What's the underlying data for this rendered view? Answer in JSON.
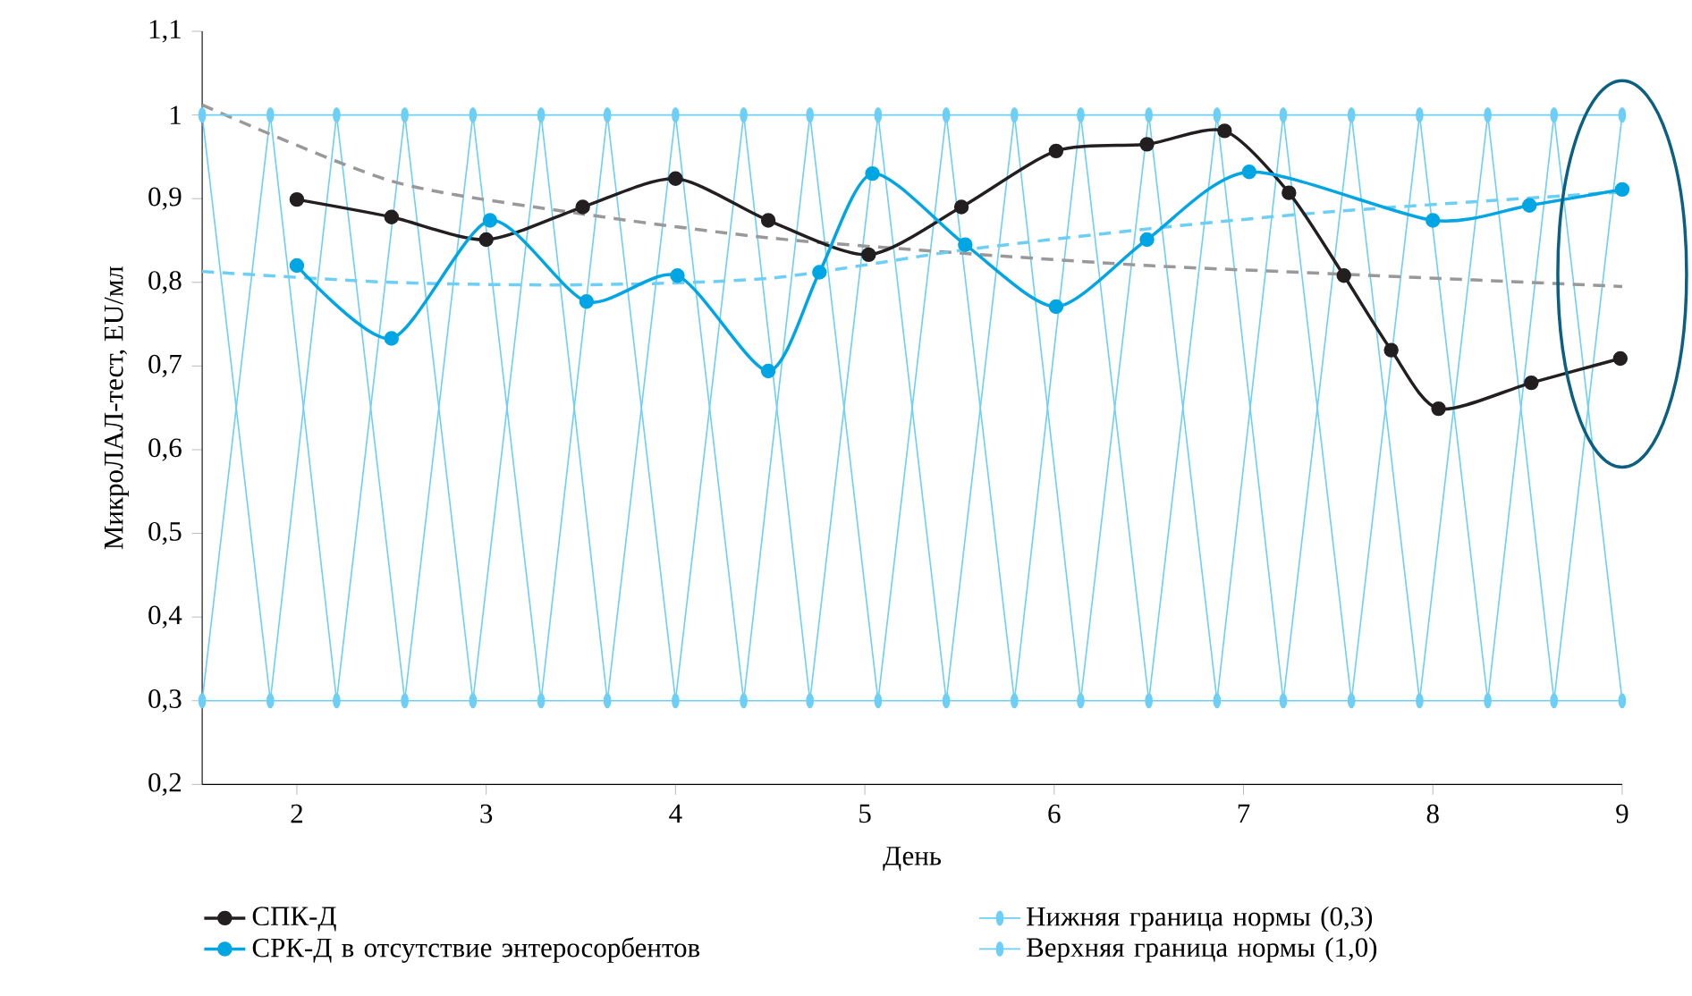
{
  "chart_data": {
    "type": "line",
    "xlabel": "День",
    "ylabel": "МикроЛАЛ-тест, EU/мл",
    "xlim": [
      1.5,
      9
    ],
    "xticks": [
      2,
      3,
      4,
      5,
      6,
      7,
      8,
      9
    ],
    "ylim": [
      0.2,
      1.1
    ],
    "yticks": [
      {
        "value": 0.2,
        "label": "0,2"
      },
      {
        "value": 0.3,
        "label": "0,3"
      },
      {
        "value": 0.4,
        "label": "0,4"
      },
      {
        "value": 0.5,
        "label": "0,5"
      },
      {
        "value": 0.6,
        "label": "0,6"
      },
      {
        "value": 0.7,
        "label": "0,7"
      },
      {
        "value": 0.8,
        "label": "0,8"
      },
      {
        "value": 0.9,
        "label": "0,9"
      },
      1,
      {
        "value": 1.1,
        "label": "1,1"
      }
    ],
    "grid": false,
    "legend": "bottom",
    "series": [
      {
        "name": "СПК-Д",
        "color": "#231f20",
        "marker": "circle",
        "line_style": "solid",
        "x": [
          2,
          2.5,
          3,
          3.51,
          4,
          4.49,
          5.02,
          5.51,
          6.01,
          6.49,
          6.9,
          7.24,
          7.53,
          7.78,
          8.03,
          8.52,
          8.99
        ],
        "values": [
          0.899,
          0.878,
          0.851,
          0.89,
          0.924,
          0.874,
          0.833,
          0.89,
          0.957,
          0.965,
          0.981,
          0.907,
          0.808,
          0.719,
          0.649,
          0.68,
          0.709
        ]
      },
      {
        "name": "СРК-Д в отсутствие энтеросорбентов",
        "color": "#00a5e3",
        "marker": "circle",
        "line_style": "solid",
        "x": [
          2,
          2.5,
          3.02,
          3.53,
          4.01,
          4.49,
          4.76,
          5.04,
          5.53,
          6.01,
          6.49,
          7.03,
          8.0,
          8.51,
          9.0
        ],
        "values": [
          0.82,
          0.733,
          0.874,
          0.777,
          0.808,
          0.694,
          0.812,
          0.93,
          0.845,
          0.771,
          0.851,
          0.932,
          0.874,
          0.892,
          0.911
        ]
      },
      {
        "name": "Нижняя граница нормы (0,3)",
        "color": "#6dcff6",
        "marker": "circle",
        "line_style": "solid",
        "x": [
          1.5,
          1.86,
          2.21,
          2.57,
          2.93,
          3.29,
          3.64,
          4.0,
          4.36,
          4.71,
          5.07,
          5.43,
          5.79,
          6.14,
          6.5,
          6.86,
          7.21,
          7.57,
          7.93,
          8.29,
          8.64,
          9.0
        ],
        "values": [
          0.3,
          0.3,
          0.3,
          0.3,
          0.3,
          0.3,
          0.3,
          0.3,
          0.3,
          0.3,
          0.3,
          0.3,
          0.3,
          0.3,
          0.3,
          0.3,
          0.3,
          0.3,
          0.3,
          0.3,
          0.3,
          0.3
        ]
      },
      {
        "name": "Верхняя граница нормы (1,0)",
        "color": "#6dcff6",
        "marker": "circle",
        "line_style": "solid",
        "x": [
          1.5,
          1.86,
          2.21,
          2.57,
          2.93,
          3.29,
          3.64,
          4.0,
          4.36,
          4.71,
          5.07,
          5.43,
          5.79,
          6.14,
          6.5,
          6.86,
          7.21,
          7.57,
          7.93,
          8.29,
          8.64,
          9.0
        ],
        "values": [
          1,
          1,
          1,
          1,
          1,
          1,
          1,
          1,
          1,
          1,
          1,
          1,
          1,
          1,
          1,
          1,
          1,
          1,
          1,
          1,
          1,
          1
        ]
      },
      {
        "color": "#6dcff6",
        "marker": "none",
        "line_style": "solid",
        "x": [
          1.5,
          1.86,
          2.21,
          2.57,
          2.93,
          3.29,
          3.64,
          4.0,
          4.36,
          4.71,
          5.07,
          5.43,
          5.79,
          6.14,
          6.5,
          6.86,
          7.21,
          7.57,
          7.93,
          8.29,
          8.64,
          9.0
        ],
        "values": [
          1,
          0.3,
          1,
          0.3,
          1,
          0.3,
          1,
          0.3,
          1,
          0.3,
          1,
          0.3,
          1,
          0.3,
          1,
          0.3,
          1,
          0.3,
          1,
          0.3,
          1,
          0.3
        ]
      },
      {
        "color": "#6dcff6",
        "marker": "none",
        "line_style": "solid",
        "x": [
          1.5,
          1.86,
          2.21,
          2.57,
          2.93,
          3.29,
          3.64,
          4.0,
          4.36,
          4.71,
          5.07,
          5.43,
          5.79,
          6.14,
          6.5,
          6.86,
          7.21,
          7.57,
          7.93,
          8.29,
          8.64,
          9.0
        ],
        "values": [
          0.3,
          1,
          0.3,
          1,
          0.3,
          1,
          0.3,
          1,
          0.3,
          1,
          0.3,
          1,
          0.3,
          1,
          0.3,
          1,
          0.3,
          1,
          0.3,
          1,
          0.3,
          1
        ]
      },
      {
        "color": "#999999",
        "marker": "none",
        "line_style": "dashed",
        "x": [
          1.5,
          2.5,
          3.5,
          4.5,
          5.5,
          6.5,
          7.5,
          9
        ],
        "values": [
          1.012,
          0.921,
          0.882,
          0.853,
          0.835,
          0.82,
          0.81,
          0.795
        ]
      },
      {
        "color": "#6dcff6",
        "marker": "none",
        "line_style": "dashed",
        "x": [
          1.5,
          2.5,
          3.5,
          4.5,
          5.5,
          6.5,
          7.5,
          9
        ],
        "values": [
          0.813,
          0.8,
          0.797,
          0.805,
          0.838,
          0.864,
          0.885,
          0.908
        ]
      }
    ]
  }
}
